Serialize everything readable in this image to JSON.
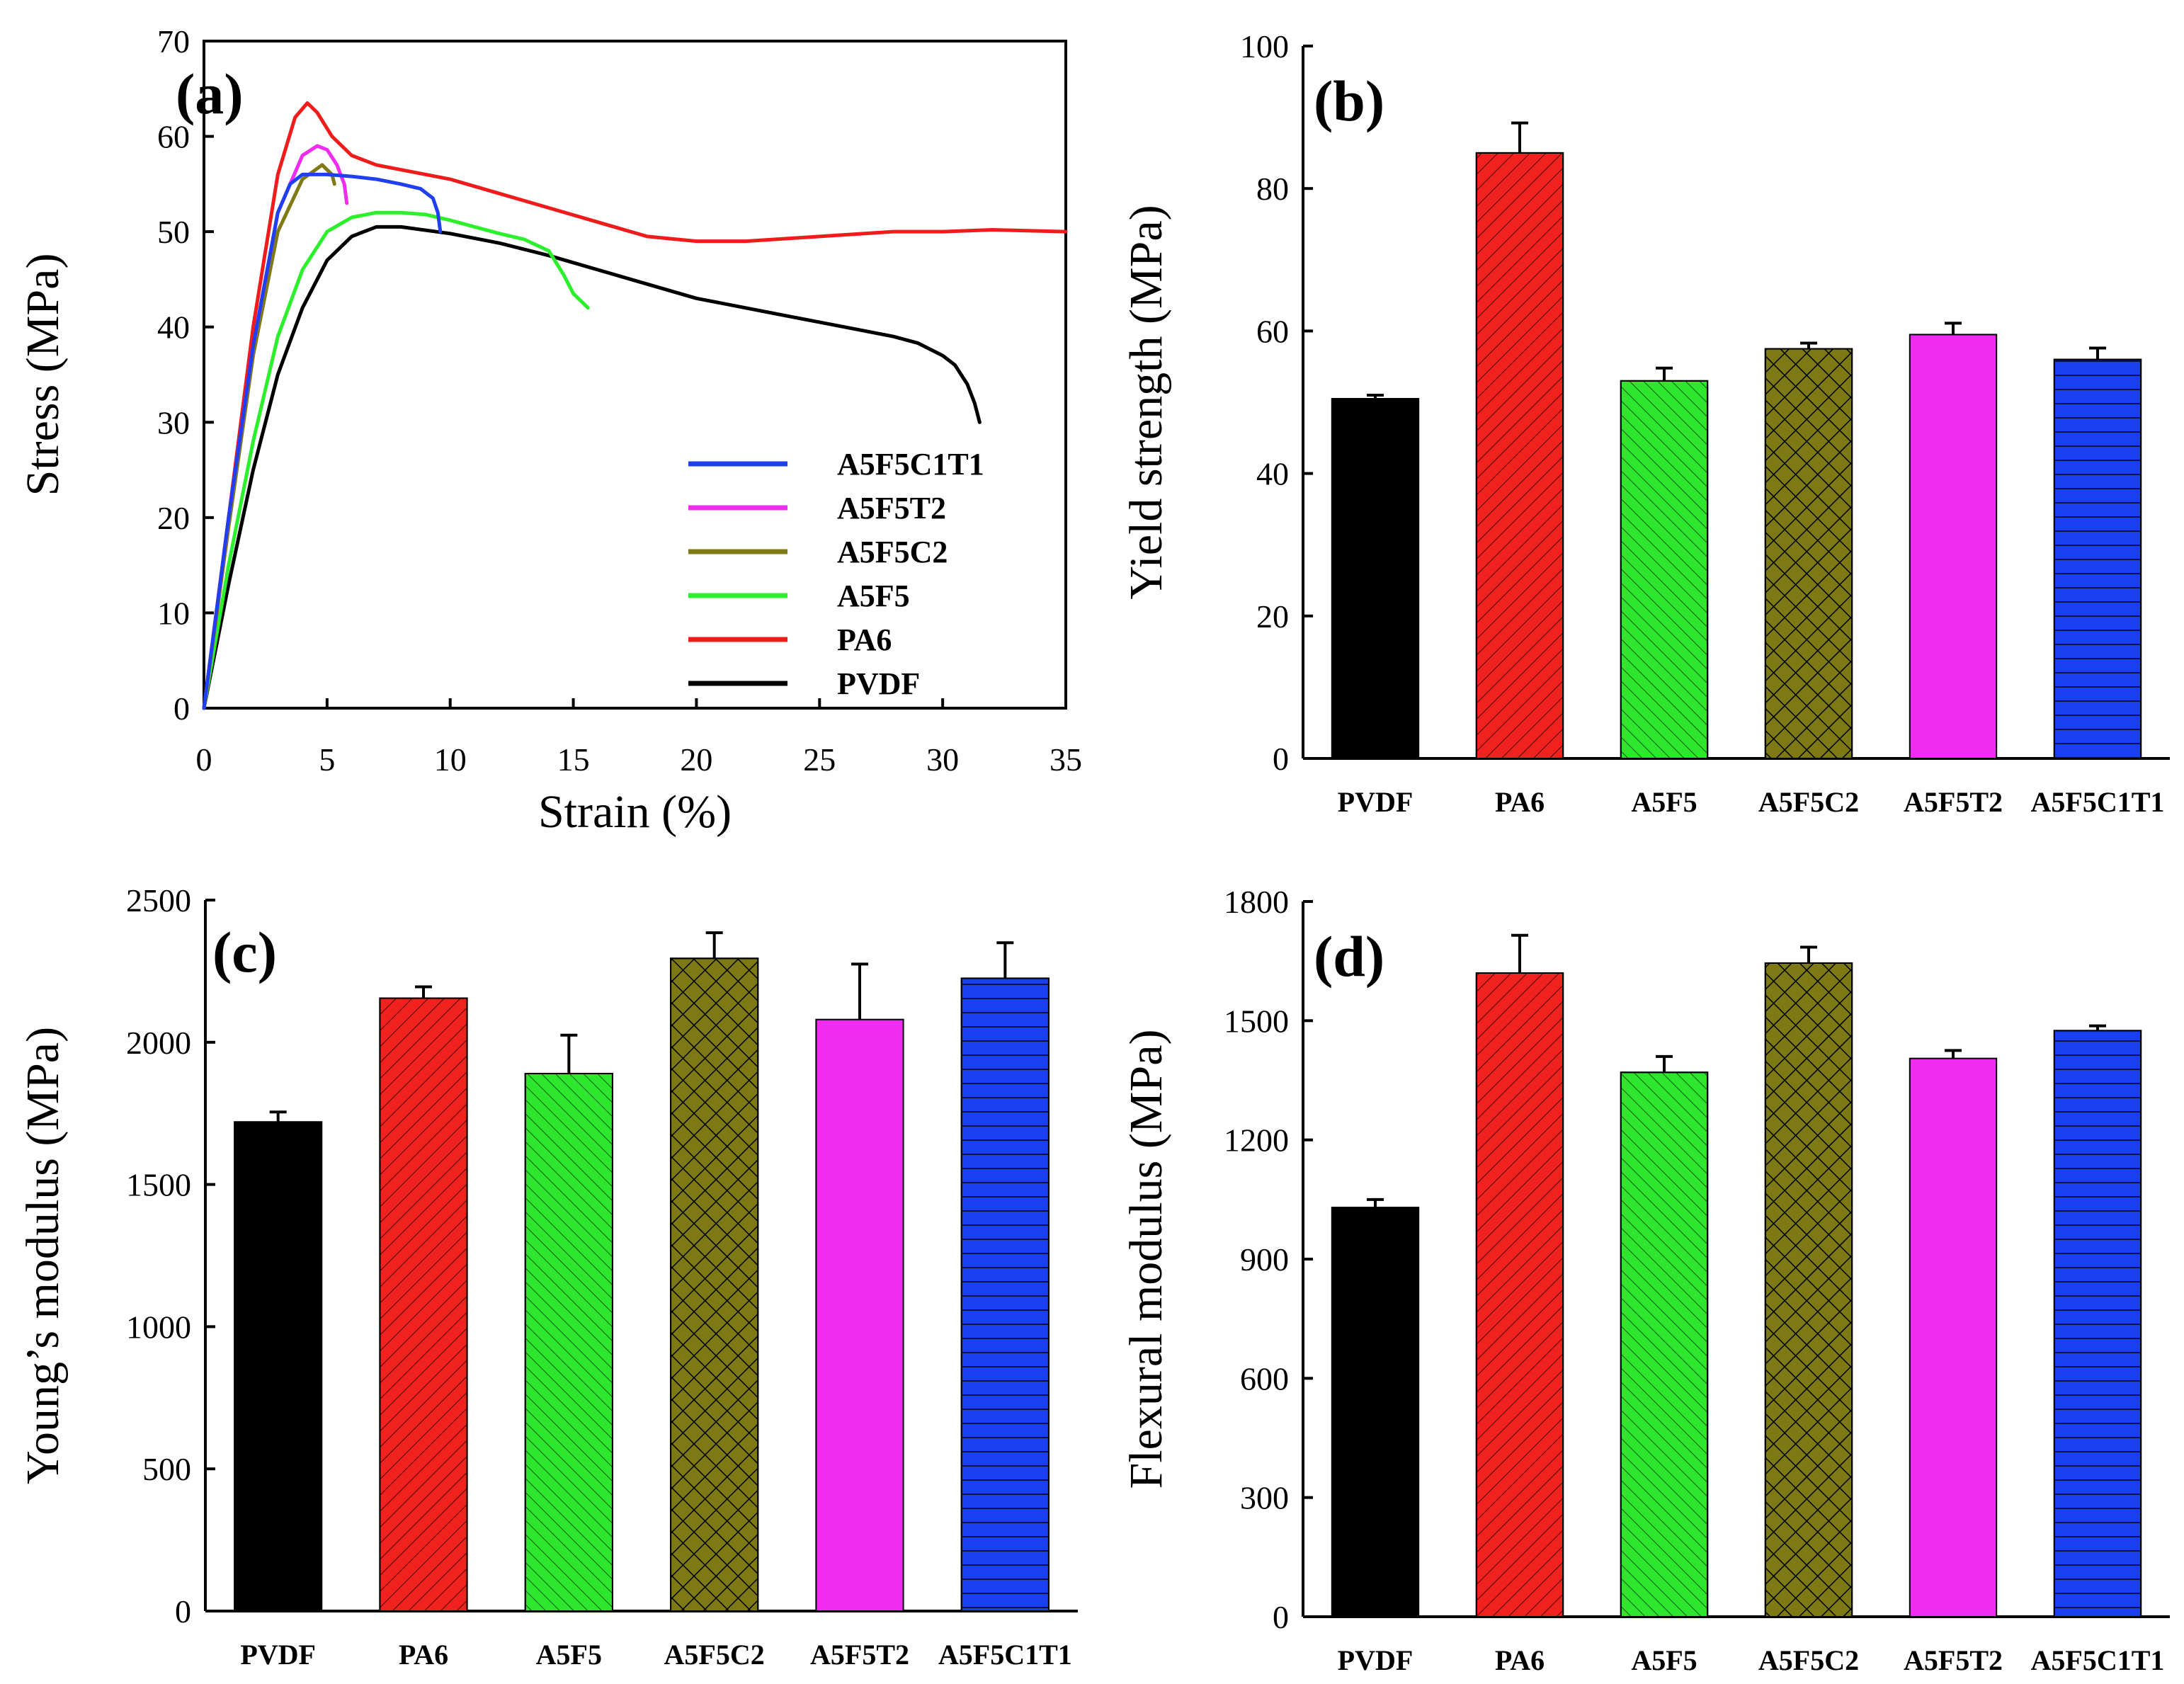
{
  "chart_data": [
    {
      "panel": "(a)",
      "type": "line",
      "xlabel": "Strain (%)",
      "ylabel": "Stress (MPa)",
      "xlim": [
        0,
        35
      ],
      "ylim": [
        0,
        70
      ],
      "xticks": [
        0,
        5,
        10,
        15,
        20,
        25,
        30,
        35
      ],
      "yticks": [
        0,
        10,
        20,
        30,
        40,
        50,
        60,
        70
      ],
      "legend_position": "bottom-right",
      "series": [
        {
          "name": "A5F5C1T1",
          "color": "#1f3ff0",
          "x": [
            0,
            1,
            2,
            3,
            3.5,
            4,
            5,
            6,
            7,
            8,
            8.8,
            9.3,
            9.5,
            9.6
          ],
          "y": [
            0,
            20,
            38,
            52,
            55,
            56,
            56,
            55.8,
            55.5,
            55,
            54.5,
            53.5,
            52,
            50
          ]
        },
        {
          "name": "A5F5T2",
          "color": "#f02cf0",
          "x": [
            0,
            1,
            2,
            3,
            4,
            4.6,
            5,
            5.4,
            5.7,
            5.8
          ],
          "y": [
            0,
            20,
            38,
            52,
            58,
            59,
            58.6,
            57,
            55,
            53
          ]
        },
        {
          "name": "A5F5C2",
          "color": "#807a16",
          "x": [
            0,
            1,
            2,
            3,
            4,
            4.8,
            5.2,
            5.3
          ],
          "y": [
            0,
            19,
            37,
            50,
            55.5,
            57,
            56,
            55
          ]
        },
        {
          "name": "A5F5",
          "color": "#2df02d",
          "x": [
            0,
            1,
            2,
            3,
            4,
            5,
            6,
            7,
            8,
            9,
            10,
            11,
            12,
            13,
            14,
            14.6,
            15,
            15.6
          ],
          "y": [
            0,
            15,
            28,
            39,
            46,
            50,
            51.5,
            52,
            52,
            51.8,
            51.2,
            50.5,
            49.8,
            49.2,
            48,
            45.5,
            43.5,
            42
          ]
        },
        {
          "name": "PA6",
          "color": "#f01c1c",
          "x": [
            0,
            1,
            2,
            3,
            3.7,
            4.2,
            4.6,
            5.2,
            6,
            7,
            8,
            10,
            12,
            14,
            16,
            18,
            20,
            22,
            25,
            28,
            30,
            32,
            35
          ],
          "y": [
            0,
            20,
            40,
            56,
            62,
            63.5,
            62.5,
            60,
            58,
            57,
            56.5,
            55.5,
            54,
            52.5,
            51,
            49.5,
            49,
            49,
            49.5,
            50,
            50,
            50.2,
            50
          ]
        },
        {
          "name": "PVDF",
          "color": "#000000",
          "x": [
            0,
            1,
            2,
            3,
            4,
            5,
            6,
            7,
            8,
            10,
            12,
            14,
            16,
            18,
            20,
            22,
            24,
            26,
            28,
            29,
            30,
            30.5,
            31,
            31.3,
            31.5
          ],
          "y": [
            0,
            13,
            25,
            35,
            42,
            47,
            49.5,
            50.5,
            50.5,
            49.8,
            48.8,
            47.5,
            46,
            44.5,
            43,
            42,
            41,
            40,
            39,
            38.3,
            37,
            36,
            34,
            32,
            30
          ]
        }
      ]
    },
    {
      "panel": "(b)",
      "type": "bar",
      "ylabel": "Yield strength (MPa)",
      "ylim": [
        0,
        100
      ],
      "yticks": [
        0,
        20,
        40,
        60,
        80,
        100
      ],
      "categories": [
        "PVDF",
        "PA6",
        "A5F5",
        "A5F5C2",
        "A5F5T2",
        "A5F5C1T1"
      ],
      "values": [
        50.5,
        85,
        53,
        57.5,
        59.5,
        56
      ],
      "errors": [
        0.5,
        4.2,
        1.8,
        0.8,
        1.6,
        1.6
      ]
    },
    {
      "panel": "(c)",
      "type": "bar",
      "ylabel": "Young’s modulus (MPa)",
      "ylim": [
        0,
        2500
      ],
      "yticks": [
        0,
        500,
        1000,
        1500,
        2000,
        2500
      ],
      "categories": [
        "PVDF",
        "PA6",
        "A5F5",
        "A5F5C2",
        "A5F5T2",
        "A5F5C1T1"
      ],
      "values": [
        1720,
        2155,
        1890,
        2295,
        2080,
        2225
      ],
      "errors": [
        35,
        40,
        135,
        90,
        195,
        125
      ]
    },
    {
      "panel": "(d)",
      "type": "bar",
      "ylabel": "Flexural modulus (MPa)",
      "ylim": [
        0,
        1800
      ],
      "yticks": [
        0,
        300,
        600,
        900,
        1200,
        1500,
        1800
      ],
      "categories": [
        "PVDF",
        "PA6",
        "A5F5",
        "A5F5C2",
        "A5F5T2",
        "A5F5C1T1"
      ],
      "values": [
        1030,
        1620,
        1370,
        1645,
        1405,
        1475
      ],
      "errors": [
        20,
        95,
        40,
        40,
        20,
        12
      ]
    }
  ],
  "bar_styles": [
    {
      "name": "PVDF",
      "color": "#000000",
      "pattern": "solid"
    },
    {
      "name": "PA6",
      "color": "#f0221f",
      "pattern": "diagonal-left"
    },
    {
      "name": "A5F5",
      "color": "#2ee62e",
      "pattern": "diagonal-right"
    },
    {
      "name": "A5F5C2",
      "color": "#7d7a16",
      "pattern": "crosshatch"
    },
    {
      "name": "A5F5T2",
      "color": "#f02cf0",
      "pattern": "solid"
    },
    {
      "name": "A5F5C1T1",
      "color": "#1a3ff0",
      "pattern": "horizontal"
    }
  ]
}
